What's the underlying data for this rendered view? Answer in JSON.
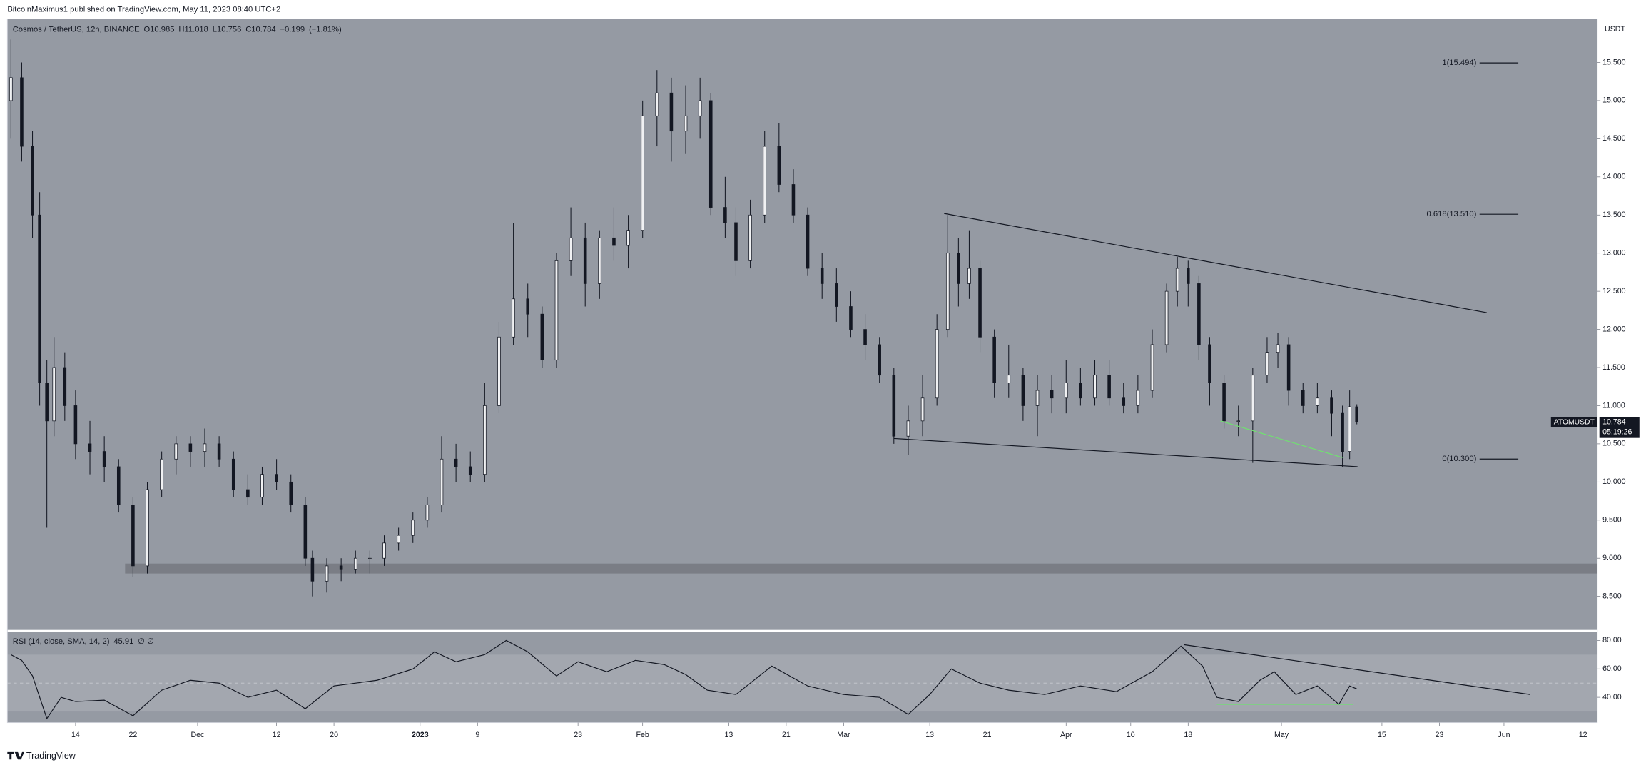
{
  "header": "BitcoinMaximus1 published on TradingView.com, May 11, 2023 08:40 UTC+2",
  "footer": "TradingView",
  "chart_data": {
    "type": "candlestick",
    "legend": {
      "symbol": "Cosmos / TetherUS, 12h, BINANCE",
      "fields": [
        {
          "label": "O",
          "value": 10.985
        },
        {
          "label": "H",
          "value": 11.018
        },
        {
          "label": "L",
          "value": 10.756
        },
        {
          "label": "C",
          "value": 10.784
        }
      ],
      "change": {
        "value": -0.199,
        "label": "−0.199"
      },
      "change_pct": {
        "value": -1.81,
        "label": "(−1.81%)"
      }
    },
    "y_unit": "USDT",
    "ticker": "ATOMUSDT",
    "countdown": "05:19:26",
    "xlim": [
      -9.5,
      212
    ],
    "xticks": [
      {
        "value": 0,
        "label": "14"
      },
      {
        "value": 8,
        "label": "22"
      },
      {
        "value": 17,
        "label": "Dec"
      },
      {
        "value": 28,
        "label": "12"
      },
      {
        "value": 36,
        "label": "20"
      },
      {
        "value": 48,
        "label": "2023"
      },
      {
        "value": 56,
        "label": "9"
      },
      {
        "value": 70,
        "label": "23"
      },
      {
        "value": 79,
        "label": "Feb"
      },
      {
        "value": 91,
        "label": "13"
      },
      {
        "value": 99,
        "label": "21"
      },
      {
        "value": 107,
        "label": "Mar"
      },
      {
        "value": 119,
        "label": "13"
      },
      {
        "value": 127,
        "label": "21"
      },
      {
        "value": 138,
        "label": "Apr"
      },
      {
        "value": 147,
        "label": "10"
      },
      {
        "value": 155,
        "label": "18"
      },
      {
        "value": 168,
        "label": "May"
      },
      {
        "value": 182,
        "label": "15"
      },
      {
        "value": 190,
        "label": "23"
      },
      {
        "value": 199,
        "label": "Jun"
      },
      {
        "value": 210,
        "label": "12"
      }
    ],
    "ylim": [
      8.06,
      16.07
    ],
    "yticks": [
      {
        "value": 8.5,
        "label": "8.500"
      },
      {
        "value": 9,
        "label": "9.000"
      },
      {
        "value": 9.5,
        "label": "9.500"
      },
      {
        "value": 10,
        "label": "10.000"
      },
      {
        "value": 10.5,
        "label": "10.500"
      },
      {
        "value": 11,
        "label": "11.000"
      },
      {
        "value": 11.5,
        "label": "11.500"
      },
      {
        "value": 12,
        "label": "12.000"
      },
      {
        "value": 12.5,
        "label": "12.500"
      },
      {
        "value": 13,
        "label": "13.000"
      },
      {
        "value": 13.5,
        "label": "13.500"
      },
      {
        "value": 14,
        "label": "14.000"
      },
      {
        "value": 14.5,
        "label": "14.500"
      },
      {
        "value": 15,
        "label": "15.000"
      },
      {
        "value": 15.5,
        "label": "15.500"
      }
    ],
    "up_color": "#f0f1f3",
    "down_color": "#131722",
    "background": "#959aa3",
    "candles": {
      "x": [
        -9,
        -7.5,
        -6,
        -5,
        -4,
        -3,
        -1.5,
        0,
        2,
        4,
        6,
        8,
        10,
        12,
        14,
        16,
        18,
        20,
        22,
        24,
        26,
        28,
        30,
        32,
        33,
        35,
        37,
        39,
        41,
        43,
        45,
        47,
        49,
        51,
        53,
        55,
        57,
        59,
        61,
        63,
        65,
        67,
        69,
        71,
        73,
        75,
        77,
        79,
        81,
        83,
        85,
        87,
        88.5,
        90.5,
        92,
        94,
        96,
        98,
        100,
        102,
        104,
        106,
        108,
        110,
        112,
        114,
        116,
        118,
        120,
        121.5,
        123,
        124.5,
        126,
        128,
        130,
        132,
        134,
        136,
        138,
        140,
        142,
        144,
        146,
        148,
        150,
        152,
        153.5,
        155,
        156.5,
        158,
        160,
        162,
        164,
        166,
        167.5,
        169,
        171,
        173,
        175,
        176.5,
        177.5,
        178.5
      ],
      "open": [
        15.0,
        15.3,
        14.4,
        13.5,
        11.3,
        10.8,
        11.5,
        11.0,
        10.5,
        10.4,
        10.2,
        9.7,
        8.9,
        9.9,
        10.3,
        10.5,
        10.4,
        10.5,
        10.3,
        9.9,
        9.8,
        10.1,
        10.0,
        9.7,
        9.0,
        8.7,
        8.9,
        8.85,
        9.0,
        9.0,
        9.2,
        9.3,
        9.5,
        9.7,
        10.3,
        10.2,
        10.1,
        11.0,
        11.9,
        12.4,
        12.2,
        11.6,
        12.9,
        13.2,
        12.6,
        13.2,
        13.1,
        13.3,
        14.8,
        15.1,
        14.6,
        14.8,
        15.0,
        13.6,
        13.4,
        12.9,
        13.5,
        14.4,
        13.9,
        13.5,
        12.8,
        12.6,
        12.3,
        12.0,
        11.8,
        11.4,
        10.6,
        10.8,
        11.1,
        12.0,
        13.0,
        12.6,
        12.8,
        11.9,
        11.3,
        11.4,
        11.0,
        11.2,
        11.1,
        11.3,
        11.1,
        11.4,
        11.1,
        11.0,
        11.2,
        11.8,
        12.5,
        12.8,
        12.6,
        11.8,
        11.3,
        10.8,
        10.8,
        11.4,
        11.7,
        11.8,
        11.2,
        11.0,
        11.1,
        10.9,
        10.4,
        10.985
      ],
      "high": [
        15.8,
        15.5,
        14.6,
        13.8,
        11.6,
        11.9,
        11.7,
        11.2,
        10.8,
        10.6,
        10.3,
        9.8,
        10.0,
        10.4,
        10.6,
        10.6,
        10.7,
        10.6,
        10.4,
        10.1,
        10.2,
        10.3,
        10.1,
        9.8,
        9.1,
        9.0,
        9.0,
        9.1,
        9.1,
        9.3,
        9.4,
        9.6,
        9.8,
        10.6,
        10.5,
        10.4,
        11.3,
        12.1,
        13.4,
        12.6,
        12.3,
        13.0,
        13.6,
        13.4,
        13.3,
        13.6,
        13.5,
        15.0,
        15.4,
        15.3,
        15.2,
        15.3,
        15.1,
        14.0,
        13.6,
        13.7,
        14.6,
        14.7,
        14.1,
        13.6,
        13.0,
        12.8,
        12.5,
        12.2,
        11.9,
        11.5,
        11.0,
        11.4,
        12.2,
        13.5,
        13.2,
        13.3,
        12.9,
        12.0,
        11.8,
        11.5,
        11.4,
        11.4,
        11.6,
        11.5,
        11.6,
        11.6,
        11.3,
        11.4,
        12.0,
        12.6,
        12.95,
        12.9,
        12.7,
        11.9,
        11.4,
        11.0,
        11.5,
        11.9,
        11.95,
        11.9,
        11.3,
        11.3,
        11.2,
        11.0,
        11.2,
        11.018
      ],
      "low": [
        14.5,
        14.2,
        13.2,
        11.0,
        9.4,
        10.6,
        10.8,
        10.3,
        10.1,
        10.0,
        9.6,
        8.75,
        8.8,
        9.8,
        10.1,
        10.2,
        10.2,
        10.2,
        9.8,
        9.7,
        9.7,
        9.9,
        9.6,
        8.9,
        8.5,
        8.55,
        8.7,
        8.8,
        8.8,
        8.9,
        9.1,
        9.2,
        9.4,
        9.6,
        10.0,
        10.0,
        10.0,
        10.9,
        11.8,
        11.9,
        11.5,
        11.5,
        12.7,
        12.3,
        12.4,
        12.9,
        12.8,
        13.2,
        14.4,
        14.2,
        14.3,
        14.5,
        13.5,
        13.2,
        12.7,
        12.8,
        13.4,
        13.8,
        13.4,
        12.7,
        12.4,
        12.1,
        11.9,
        11.6,
        11.3,
        10.5,
        10.35,
        10.6,
        11.0,
        11.9,
        12.3,
        12.4,
        11.7,
        11.1,
        11.1,
        10.8,
        10.6,
        10.9,
        10.9,
        11.0,
        11.0,
        11.0,
        10.9,
        10.9,
        11.1,
        11.7,
        12.3,
        12.3,
        11.6,
        11.0,
        10.7,
        10.6,
        10.25,
        11.3,
        11.5,
        11.0,
        10.9,
        10.9,
        10.6,
        10.2,
        10.3,
        10.756
      ],
      "close": [
        15.3,
        14.4,
        13.5,
        11.3,
        10.8,
        11.5,
        11.0,
        10.5,
        10.4,
        10.2,
        9.7,
        8.9,
        9.9,
        10.3,
        10.5,
        10.4,
        10.5,
        10.3,
        9.9,
        9.8,
        10.1,
        10.0,
        9.7,
        9.0,
        8.7,
        8.9,
        8.85,
        9.0,
        9.0,
        9.2,
        9.3,
        9.5,
        9.7,
        10.3,
        10.2,
        10.1,
        11.0,
        11.9,
        12.4,
        12.2,
        11.6,
        12.9,
        13.2,
        12.6,
        13.2,
        13.1,
        13.3,
        14.8,
        15.1,
        14.6,
        14.8,
        15.0,
        13.6,
        13.4,
        12.9,
        13.5,
        14.4,
        13.9,
        13.5,
        12.8,
        12.6,
        12.3,
        12.0,
        11.8,
        11.4,
        10.6,
        10.8,
        11.1,
        12.0,
        13.0,
        12.6,
        12.8,
        11.9,
        11.3,
        11.4,
        11.0,
        11.2,
        11.1,
        11.3,
        11.1,
        11.4,
        11.1,
        11.0,
        11.2,
        11.8,
        12.5,
        12.8,
        12.6,
        11.8,
        11.3,
        10.8,
        10.8,
        11.4,
        11.7,
        11.8,
        11.2,
        11.0,
        11.1,
        10.9,
        10.4,
        10.985,
        10.784
      ]
    },
    "zone": {
      "x0": 6.9,
      "y": [
        8.8,
        8.93
      ],
      "color": "#73767d"
    },
    "trendlines": [
      {
        "x": [
          121,
          196.6
        ],
        "y": [
          13.52,
          12.22
        ],
        "color": "#131722"
      },
      {
        "x": [
          114,
          178.6
        ],
        "y": [
          10.57,
          10.2
        ],
        "color": "#131722"
      },
      {
        "x": [
          159.5,
          176.5
        ],
        "y": [
          10.8,
          10.32
        ],
        "color": "#6fe36f"
      }
    ],
    "fib": {
      "x": [
        195.6,
        201
      ],
      "levels": [
        {
          "value": 15.494,
          "label": "1(15.494)"
        },
        {
          "value": 13.51,
          "label": "0.618(13.510)"
        },
        {
          "value": 10.3,
          "label": "0(10.300)"
        }
      ]
    },
    "rsi": {
      "title": "RSI (14, close, SMA, 14, 2)",
      "extra": "∅ ∅",
      "ylim": [
        22.2,
        85.9
      ],
      "yticks": [
        {
          "value": 40,
          "label": "40.00"
        },
        {
          "value": 60,
          "label": "60.00"
        },
        {
          "value": 80,
          "label": "80.00"
        }
      ],
      "bands": [
        30,
        70
      ],
      "midline": 50,
      "x": [
        -9,
        -7.5,
        -6,
        -4,
        -2,
        0,
        4,
        8,
        12,
        16,
        20,
        24,
        28,
        32,
        36,
        42,
        47,
        50,
        53,
        57,
        60,
        63,
        67,
        70,
        74,
        78,
        82,
        85,
        88,
        92,
        97,
        102,
        107,
        112,
        116,
        119,
        122,
        126,
        130,
        135,
        140,
        145,
        150,
        154,
        157,
        159,
        162,
        165,
        167,
        170,
        173,
        176,
        177.5,
        178.5
      ],
      "values": [
        70,
        66,
        55,
        25,
        40,
        37,
        38,
        27,
        45,
        52,
        50,
        40,
        45,
        32,
        48,
        52,
        60,
        72,
        65,
        70,
        80,
        72,
        55,
        65,
        58,
        66,
        63,
        56,
        45,
        42,
        62,
        48,
        42,
        40,
        28,
        42,
        60,
        50,
        45,
        42,
        48,
        44,
        58,
        76,
        62,
        40,
        37,
        52,
        58,
        42,
        48,
        35,
        48,
        45.91
      ],
      "color": "#131722",
      "trendlines": [
        {
          "x": [
            154.4,
            202.6
          ],
          "y": [
            77,
            42
          ],
          "color": "#131722"
        },
        {
          "x": [
            159,
            178
          ],
          "y": [
            35,
            35
          ],
          "color": "#6fe36f"
        }
      ]
    }
  }
}
